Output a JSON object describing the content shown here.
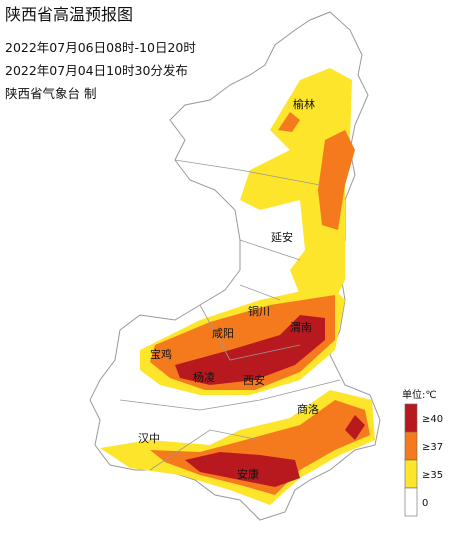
{
  "header": {
    "title": "陕西省高温预报图",
    "period": "2022年07月06日08时-10日20时",
    "issued": "2022年07月04日10时30分发布",
    "issuer": "陕西省气象台 制"
  },
  "cities": [
    "榆林",
    "延安",
    "铜川",
    "咸阳",
    "渭南",
    "宝鸡",
    "杨凌",
    "西安",
    "商洛",
    "汉中",
    "安康"
  ],
  "legend": {
    "unit": "单位:℃",
    "items": [
      {
        "label": "≥40",
        "color": "#b8191f"
      },
      {
        "label": "≥37",
        "color": "#f57a1e"
      },
      {
        "label": "≥35",
        "color": "#fde52b"
      },
      {
        "label": "0",
        "color": "#ffffff"
      }
    ]
  }
}
